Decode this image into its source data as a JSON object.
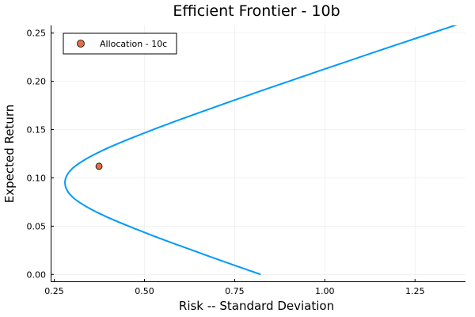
{
  "chart_data": {
    "type": "line",
    "title": "Efficient Frontier - 10b",
    "xlabel": "Risk -- Standard Deviation",
    "ylabel": "Expected Return",
    "xlim": [
      0.24,
      1.39
    ],
    "ylim": [
      -0.008,
      0.258
    ],
    "x_ticks": [
      0.25,
      0.5,
      0.75,
      1.0,
      1.25
    ],
    "x_tick_labels": [
      "0.25",
      "0.50",
      "0.75",
      "1.00",
      "1.25"
    ],
    "y_ticks": [
      0.0,
      0.05,
      0.1,
      0.15,
      0.2,
      0.25
    ],
    "y_tick_labels": [
      "0.00",
      "0.05",
      "0.10",
      "0.15",
      "0.20",
      "0.25"
    ],
    "grid": true,
    "legend": {
      "placement": "top-left",
      "entries": [
        "Allocation - 10c"
      ]
    },
    "series": [
      {
        "type": "line",
        "color": "#009af9",
        "x": [
          0.822,
          0.745,
          0.67,
          0.596,
          0.524,
          0.456,
          0.393,
          0.34,
          0.301,
          0.282,
          0.282,
          0.301,
          0.34,
          0.393,
          0.456,
          0.524,
          0.596,
          0.67,
          0.745,
          0.822,
          0.9,
          0.978,
          1.057,
          1.136,
          1.216,
          1.296,
          1.377
        ],
        "y": [
          0.0,
          0.01,
          0.02,
          0.03,
          0.04,
          0.05,
          0.06,
          0.07,
          0.08,
          0.09,
          0.1,
          0.11,
          0.12,
          0.13,
          0.14,
          0.15,
          0.16,
          0.17,
          0.18,
          0.19,
          0.2,
          0.21,
          0.22,
          0.23,
          0.24,
          0.25,
          0.26
        ]
      },
      {
        "type": "scatter",
        "name": "Allocation - 10c",
        "color": "#e26f46",
        "x": [
          0.374
        ],
        "y": [
          0.112
        ]
      }
    ]
  }
}
